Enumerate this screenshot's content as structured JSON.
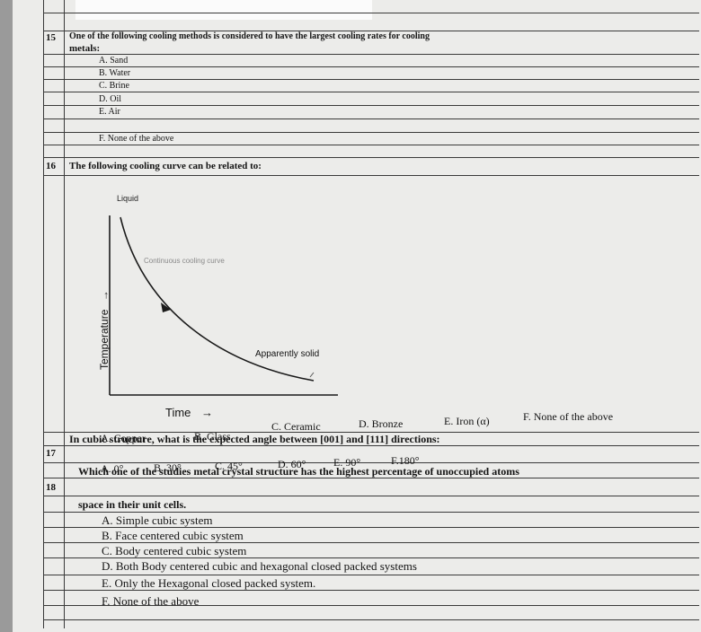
{
  "questions": [
    {
      "number": "15",
      "text_line1": "One of the following cooling methods is considered to have the largest cooling rates for cooling",
      "text_line2": "metals:",
      "options": [
        "A. Sand",
        "B. Water",
        "C. Brine",
        "D. Oil",
        "E. Air",
        "F. None of the above"
      ]
    },
    {
      "number": "16",
      "text": "The following cooling curve can be related to:",
      "figure": {
        "label_top": "Liquid",
        "label_curve": "Continuous cooling curve",
        "label_end": "Apparently solid",
        "y_axis": "Temperature",
        "y_arrow": "→",
        "x_axis": "Time",
        "x_arrow": "→"
      },
      "options": [
        "A. Copper",
        "B. Glass",
        "C. Ceramic",
        "D. Bronze",
        "E. Iron (α)",
        "F. None of the above"
      ]
    },
    {
      "number": "17",
      "text": "In cubic structure, what is the expected angle between [001] and [111] directions:",
      "options": [
        "A. 0°",
        "B. 30°",
        "C. 45°",
        "D. 60°",
        "E. 90°",
        "F.180°"
      ]
    },
    {
      "number": "18",
      "text_line1": "Which one of the studies metal crystal structure has the highest percentage of unoccupied atoms",
      "text_line2": "space in their unit cells.",
      "options": [
        "A. Simple cubic system",
        "B. Face centered cubic system",
        "C. Body centered cubic system",
        "D. Both Body centered cubic and hexagonal closed packed systems",
        "E. Only the Hexagonal closed packed system.",
        "F. None of the above"
      ]
    }
  ]
}
